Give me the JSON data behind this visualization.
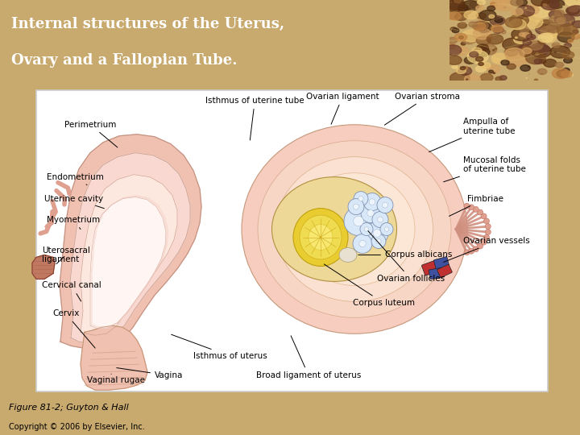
{
  "title_line1": "Internal structures of the Uterus,",
  "title_line2": "Ovary and a Fallopian Tube.",
  "title_bg_color": "#9B1B2A",
  "title_text_color": "#FFFFFF",
  "main_bg_color": "#C8A96E",
  "diagram_bg_color": "#FFFFFF",
  "figure_caption": "Figure 81-2; Guyton & Hall",
  "copyright": "Copyright © 2006 by Elsevier, Inc.",
  "uterus_outer_color": "#F0C0B0",
  "uterus_mid_color": "#F8D8D0",
  "uterus_inner_color": "#FFF0EE",
  "fallopian_outer_color": "#F5C8B8",
  "ovary_color": "#EED898",
  "follicle_color": "#C8D8F0",
  "corpus_luteum_color": "#E8D040",
  "label_fontsize": 7.5
}
